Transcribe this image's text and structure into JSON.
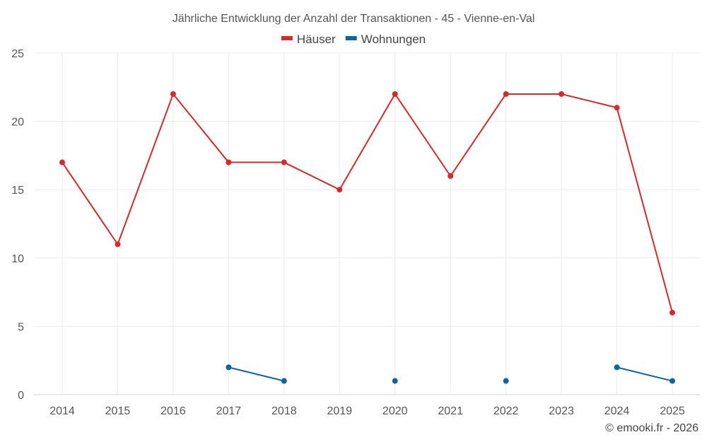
{
  "chart_data": {
    "type": "line",
    "title": "Jährliche Entwicklung der Anzahl der Transaktionen - 45 - Vienne-en-Val",
    "categories": [
      "2014",
      "2015",
      "2016",
      "2017",
      "2018",
      "2019",
      "2020",
      "2021",
      "2022",
      "2023",
      "2024",
      "2025"
    ],
    "series": [
      {
        "name": "Häuser",
        "color": "#d42a2a",
        "values": [
          17,
          11,
          22,
          17,
          17,
          15,
          22,
          16,
          22,
          22,
          21,
          6
        ]
      },
      {
        "name": "Wohnungen",
        "color": "#0c65a0",
        "values": [
          null,
          null,
          null,
          2,
          1,
          null,
          1,
          null,
          1,
          null,
          2,
          1
        ]
      }
    ],
    "ylim": [
      0,
      25
    ],
    "yticks": [
      "0",
      "5",
      "10",
      "15",
      "20",
      "25"
    ],
    "xlabel": "",
    "ylabel": "",
    "grid": true,
    "legend": "top-center"
  },
  "credit": "© emooki.fr - 2026"
}
